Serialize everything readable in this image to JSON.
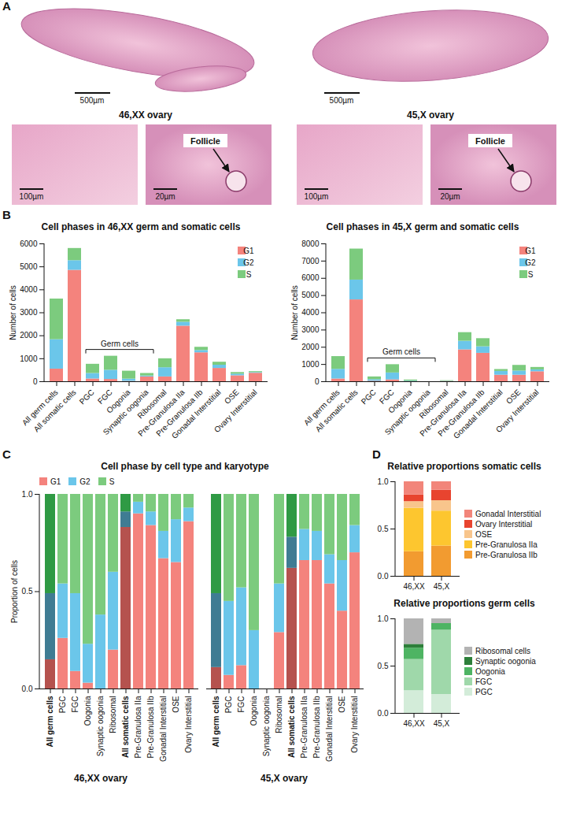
{
  "panel_letters": [
    "A",
    "B",
    "C",
    "D"
  ],
  "histology": [
    {
      "label": "46,XX ovary",
      "scale_bar": "500µm",
      "insets": [
        {
          "scale_bar": "100µm"
        },
        {
          "scale_bar": "20µm",
          "annotation": "Follicle"
        }
      ]
    },
    {
      "label": "45,X ovary",
      "scale_bar": "500µm",
      "insets": [
        {
          "scale_bar": "100µm"
        },
        {
          "scale_bar": "20µm",
          "annotation": "Follicle"
        }
      ]
    }
  ],
  "chart_data": [
    {
      "type": "bar",
      "stacked": true,
      "title": "Cell phases in 46,XX germ and somatic cells",
      "ylabel": "Number of cells",
      "categories": [
        "All germ cells",
        "All somatic cells",
        "PGC",
        "FGC",
        "Oogonia",
        "Synaptic oogonia",
        "Ribosomal",
        "Pre-Granulosa IIa",
        "Pre-Granulosa IIb",
        "Gonadal Interstitial",
        "OSE",
        "Ovary Interstitial"
      ],
      "series": [
        {
          "name": "G1",
          "color": "#F4837D",
          "values": [
            550,
            4850,
            120,
            100,
            15,
            210,
            210,
            2420,
            1260,
            580,
            260,
            370
          ]
        },
        {
          "name": "G2",
          "color": "#6BC6EA",
          "values": [
            1280,
            420,
            240,
            400,
            100,
            40,
            400,
            170,
            100,
            140,
            70,
            30
          ]
        },
        {
          "name": "S",
          "color": "#7CCB7E",
          "values": [
            1770,
            530,
            400,
            610,
            345,
            110,
            390,
            110,
            140,
            130,
            70,
            40
          ]
        }
      ],
      "ylim": [
        0,
        6000
      ],
      "yticks": [
        0,
        1000,
        2000,
        3000,
        4000,
        5000,
        6000
      ],
      "legend": "top-right",
      "annotations": [
        {
          "text": "Germ cells",
          "from": "PGC",
          "to": "Synaptic oogonia"
        }
      ]
    },
    {
      "type": "bar",
      "stacked": true,
      "title": "Cell phases in 45,X germ and somatic cells",
      "ylabel": "Number of cells",
      "categories": [
        "All germ cells",
        "All somatic cells",
        "PGC",
        "FGC",
        "Oogonia",
        "Synaptic oogonia",
        "Ribosomal",
        "Pre-Granulosa IIa",
        "Pre-Granulosa IIb",
        "Gonadal Interstitial",
        "OSE",
        "Ovary Interstitial"
      ],
      "series": [
        {
          "name": "G1",
          "color": "#F4837D",
          "values": [
            160,
            4750,
            30,
            110,
            2,
            0,
            15,
            1850,
            1650,
            380,
            380,
            580
          ]
        },
        {
          "name": "G2",
          "color": "#6BC6EA",
          "values": [
            560,
            1150,
            90,
            400,
            30,
            0,
            15,
            500,
            380,
            220,
            240,
            110
          ]
        },
        {
          "name": "S",
          "color": "#7CCB7E",
          "values": [
            740,
            1800,
            160,
            480,
            68,
            0,
            30,
            500,
            470,
            110,
            330,
            140
          ]
        }
      ],
      "ylim": [
        0,
        8000
      ],
      "yticks": [
        0,
        1000,
        2000,
        3000,
        4000,
        5000,
        6000,
        7000,
        8000
      ],
      "legend": "top-right",
      "annotations": [
        {
          "text": "Germ cells",
          "from": "PGC",
          "to": "Synaptic oogonia"
        }
      ]
    },
    {
      "type": "bar",
      "stacked": true,
      "title": "Cell phase by cell type and karyotype",
      "ylabel": "Proportion of cells",
      "categories": [
        "All germ cells",
        "PGC",
        "FGC",
        "Oogonia",
        "Synaptic oogonia",
        "Ribosomal",
        "All somatic cells",
        "Pre-Granulosa IIa",
        "Pre-Granulosa IIb",
        "Gonadal Interstitial",
        "OSE",
        "Ovary Interstitial"
      ],
      "ylim": [
        0,
        1
      ],
      "yticks": [
        {
          "value": 0,
          "label": "0.0"
        },
        {
          "value": 0.5,
          "label": "0.5"
        },
        {
          "value": 1,
          "label": "1.0"
        }
      ],
      "legend": "top-left",
      "groups": [
        {
          "name": "46,XX ovary",
          "series": [
            {
              "name": "G1",
              "color": "#F4837D",
              "colors": [
                "#B5524E",
                "#F4837D",
                "#F4837D",
                "#F4837D",
                "#F4837D",
                "#F4837D",
                "#B5524E",
                "#F4837D",
                "#F4837D",
                "#F4837D",
                "#F4837D",
                "#F4837D"
              ],
              "values": [
                0.15,
                0.26,
                0.09,
                0.03,
                0,
                0.2,
                0.83,
                0.9,
                0.84,
                0.67,
                0.65,
                0.86
              ]
            },
            {
              "name": "G2",
              "color": "#6BC6EA",
              "colors": [
                "#3F7C93",
                "#6BC6EA",
                "#6BC6EA",
                "#6BC6EA",
                "#6BC6EA",
                "#6BC6EA",
                "#3F7C93",
                "#6BC6EA",
                "#6BC6EA",
                "#6BC6EA",
                "#6BC6EA",
                "#6BC6EA"
              ],
              "values": [
                0.34,
                0.28,
                0.4,
                0.2,
                0.38,
                0.4,
                0.08,
                0.06,
                0.07,
                0.14,
                0.22,
                0.07
              ]
            },
            {
              "name": "S",
              "color": "#7CCB7E",
              "colors": [
                "#2F9A44",
                "#7CCB7E",
                "#7CCB7E",
                "#7CCB7E",
                "#7CCB7E",
                "#7CCB7E",
                "#2F9A44",
                "#7CCB7E",
                "#7CCB7E",
                "#7CCB7E",
                "#7CCB7E",
                "#7CCB7E"
              ],
              "values": [
                0.51,
                0.46,
                0.51,
                0.77,
                0.62,
                0.4,
                0.09,
                0.04,
                0.09,
                0.19,
                0.13,
                0.07
              ]
            }
          ]
        },
        {
          "name": "45,X ovary",
          "series": [
            {
              "name": "G1",
              "color": "#F4837D",
              "colors": [
                "#B5524E",
                "#F4837D",
                "#F4837D",
                "#F4837D",
                "#F4837D",
                "#F4837D",
                "#B5524E",
                "#F4837D",
                "#F4837D",
                "#F4837D",
                "#F4837D",
                "#F4837D"
              ],
              "values": [
                0.11,
                0.07,
                0.12,
                0,
                null,
                0.29,
                0.62,
                0.66,
                0.66,
                0.54,
                0.4,
                0.7
              ]
            },
            {
              "name": "G2",
              "color": "#6BC6EA",
              "colors": [
                "#3F7C93",
                "#6BC6EA",
                "#6BC6EA",
                "#6BC6EA",
                "#6BC6EA",
                "#6BC6EA",
                "#3F7C93",
                "#6BC6EA",
                "#6BC6EA",
                "#6BC6EA",
                "#6BC6EA",
                "#6BC6EA"
              ],
              "values": [
                0.38,
                0.38,
                0.4,
                0.3,
                null,
                0.25,
                0.16,
                0.16,
                0.15,
                0.15,
                0.26,
                0.14
              ]
            },
            {
              "name": "S",
              "color": "#7CCB7E",
              "colors": [
                "#2F9A44",
                "#7CCB7E",
                "#7CCB7E",
                "#7CCB7E",
                "#7CCB7E",
                "#7CCB7E",
                "#2F9A44",
                "#7CCB7E",
                "#7CCB7E",
                "#7CCB7E",
                "#7CCB7E",
                "#7CCB7E"
              ],
              "values": [
                0.51,
                0.55,
                0.48,
                0.7,
                null,
                0.46,
                0.22,
                0.18,
                0.19,
                0.31,
                0.34,
                0.16
              ]
            }
          ]
        }
      ]
    },
    {
      "type": "bar",
      "stacked": true,
      "title": "Relative proportions somatic cells",
      "categories": [
        "46,XX",
        "45,X"
      ],
      "series": [
        {
          "name": "Pre-Granulosa IIb",
          "color": "#F29B30",
          "values": [
            0.26,
            0.32
          ]
        },
        {
          "name": "Pre-Granulosa IIa",
          "color": "#FDC62F",
          "values": [
            0.46,
            0.37
          ]
        },
        {
          "name": "OSE",
          "color": "#F8C58C",
          "values": [
            0.07,
            0.11
          ]
        },
        {
          "name": "Ovary Interstitial",
          "color": "#E8442F",
          "values": [
            0.07,
            0.11
          ]
        },
        {
          "name": "Gonadal Interstitial",
          "color": "#F2857A",
          "values": [
            0.14,
            0.09
          ]
        }
      ],
      "ylim": [
        0,
        1
      ],
      "yticks": [
        {
          "value": 0,
          "label": "0.0"
        },
        {
          "value": 0.5,
          "label": "0.5"
        },
        {
          "value": 1,
          "label": "1.0"
        }
      ],
      "legend": "right"
    },
    {
      "type": "bar",
      "stacked": true,
      "title": "Relative proportions germ cells",
      "categories": [
        "46,XX",
        "45,X"
      ],
      "series": [
        {
          "name": "PGC",
          "color": "#D3ECD9",
          "values": [
            0.24,
            0.2
          ]
        },
        {
          "name": "FGC",
          "color": "#9FD8AA",
          "values": [
            0.33,
            0.68
          ]
        },
        {
          "name": "Oogonia",
          "color": "#4EB463",
          "values": [
            0.12,
            0.07
          ]
        },
        {
          "name": "Synaptic oogonia",
          "color": "#2D7F3A",
          "values": [
            0.04,
            0
          ]
        },
        {
          "name": "Ribosomal cells",
          "color": "#B3B3B3",
          "values": [
            0.27,
            0.05
          ]
        }
      ],
      "ylim": [
        0,
        1
      ],
      "yticks": [
        {
          "value": 0,
          "label": "0.0"
        },
        {
          "value": 0.5,
          "label": "0.5"
        },
        {
          "value": 1,
          "label": "1.0"
        }
      ],
      "legend": "right"
    }
  ]
}
